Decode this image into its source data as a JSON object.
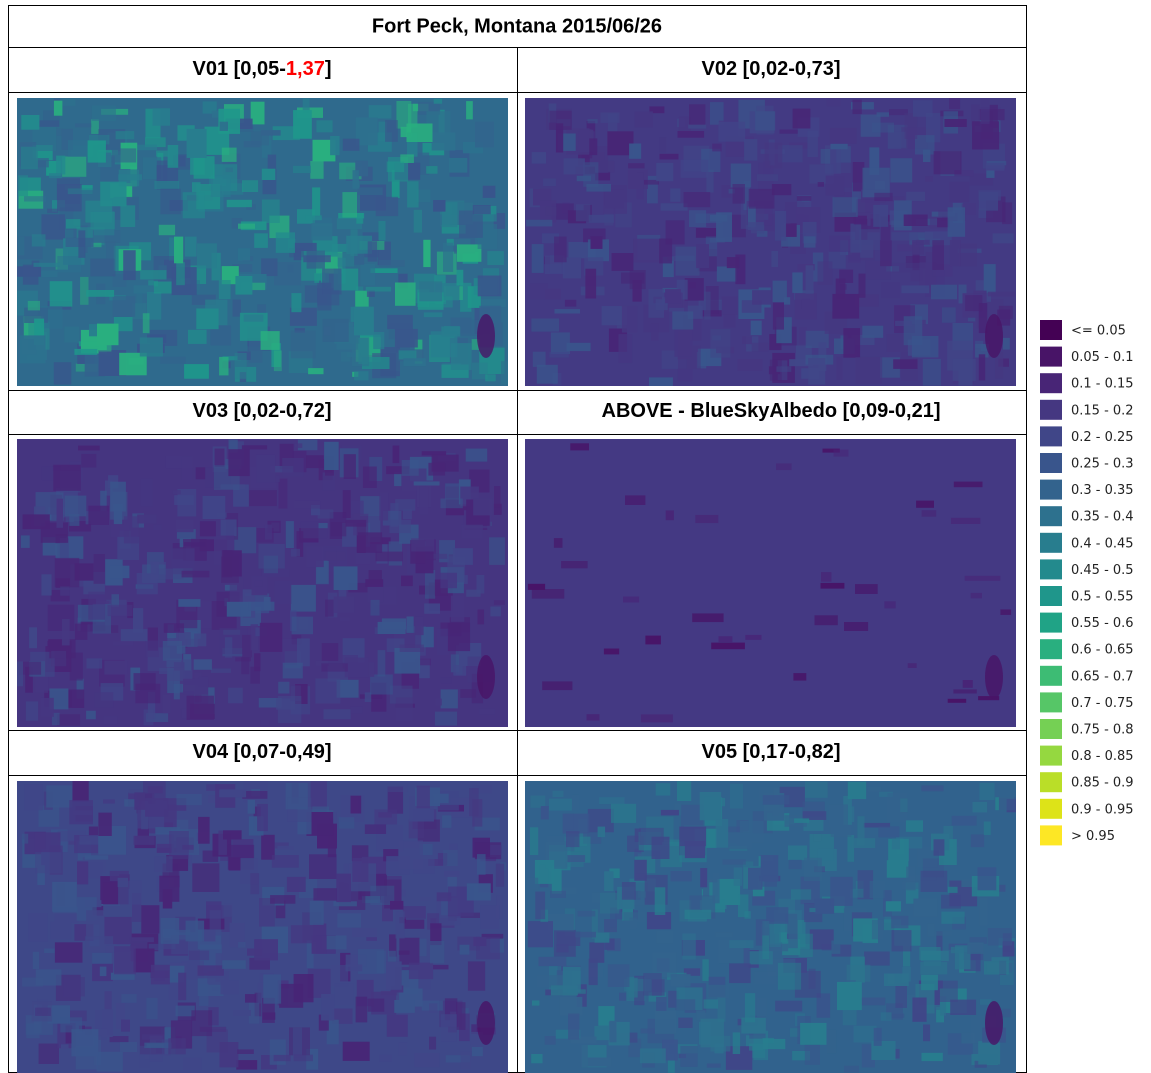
{
  "title": "Fort Peck, Montana 2015/06/26",
  "panels": [
    {
      "header": [
        {
          "text": "V01 [0,05-"
        },
        {
          "text": "1,37",
          "color": "#ff0000"
        },
        {
          "text": "]"
        }
      ]
    },
    {
      "header": [
        {
          "text": "V02 [0,02-0,73]"
        }
      ]
    },
    {
      "header": [
        {
          "text": "V03 [0,02-0,72]"
        }
      ]
    },
    {
      "header": [
        {
          "text": "ABOVE - BlueSkyAlbedo [0,09-0,21]"
        }
      ]
    },
    {
      "header": [
        {
          "text": "V04 [0,07-0,49]"
        }
      ]
    },
    {
      "header": [
        {
          "text": "V05 [0,17-0,82]"
        }
      ]
    }
  ],
  "legend": [
    {
      "label": "<= 0.05",
      "color": "#440154"
    },
    {
      "label": "0.05 - 0.1",
      "color": "#481467"
    },
    {
      "label": "0.1 - 0.15",
      "color": "#482576"
    },
    {
      "label": "0.15 - 0.2",
      "color": "#453781"
    },
    {
      "label": "0.2 - 0.25",
      "color": "#404688"
    },
    {
      "label": "0.25 - 0.3",
      "color": "#39558c"
    },
    {
      "label": "0.3 - 0.35",
      "color": "#33638d"
    },
    {
      "label": "0.35 - 0.4",
      "color": "#2d718e"
    },
    {
      "label": "0.4 - 0.45",
      "color": "#287d8e"
    },
    {
      "label": "0.45 - 0.5",
      "color": "#238a8d"
    },
    {
      "label": "0.5 - 0.55",
      "color": "#1f968b"
    },
    {
      "label": "0.55 - 0.6",
      "color": "#20a386"
    },
    {
      "label": "0.6 - 0.65",
      "color": "#29af7f"
    },
    {
      "label": "0.65 - 0.7",
      "color": "#3dbc74"
    },
    {
      "label": "0.7 - 0.75",
      "color": "#56c667"
    },
    {
      "label": "0.75 - 0.8",
      "color": "#75d054"
    },
    {
      "label": "0.8 - 0.85",
      "color": "#95d840"
    },
    {
      "label": "0.85 - 0.9",
      "color": "#bade28"
    },
    {
      "label": "0.9 - 0.95",
      "color": "#dde318"
    },
    {
      "label": "> 0.95",
      "color": "#fde725"
    }
  ]
}
